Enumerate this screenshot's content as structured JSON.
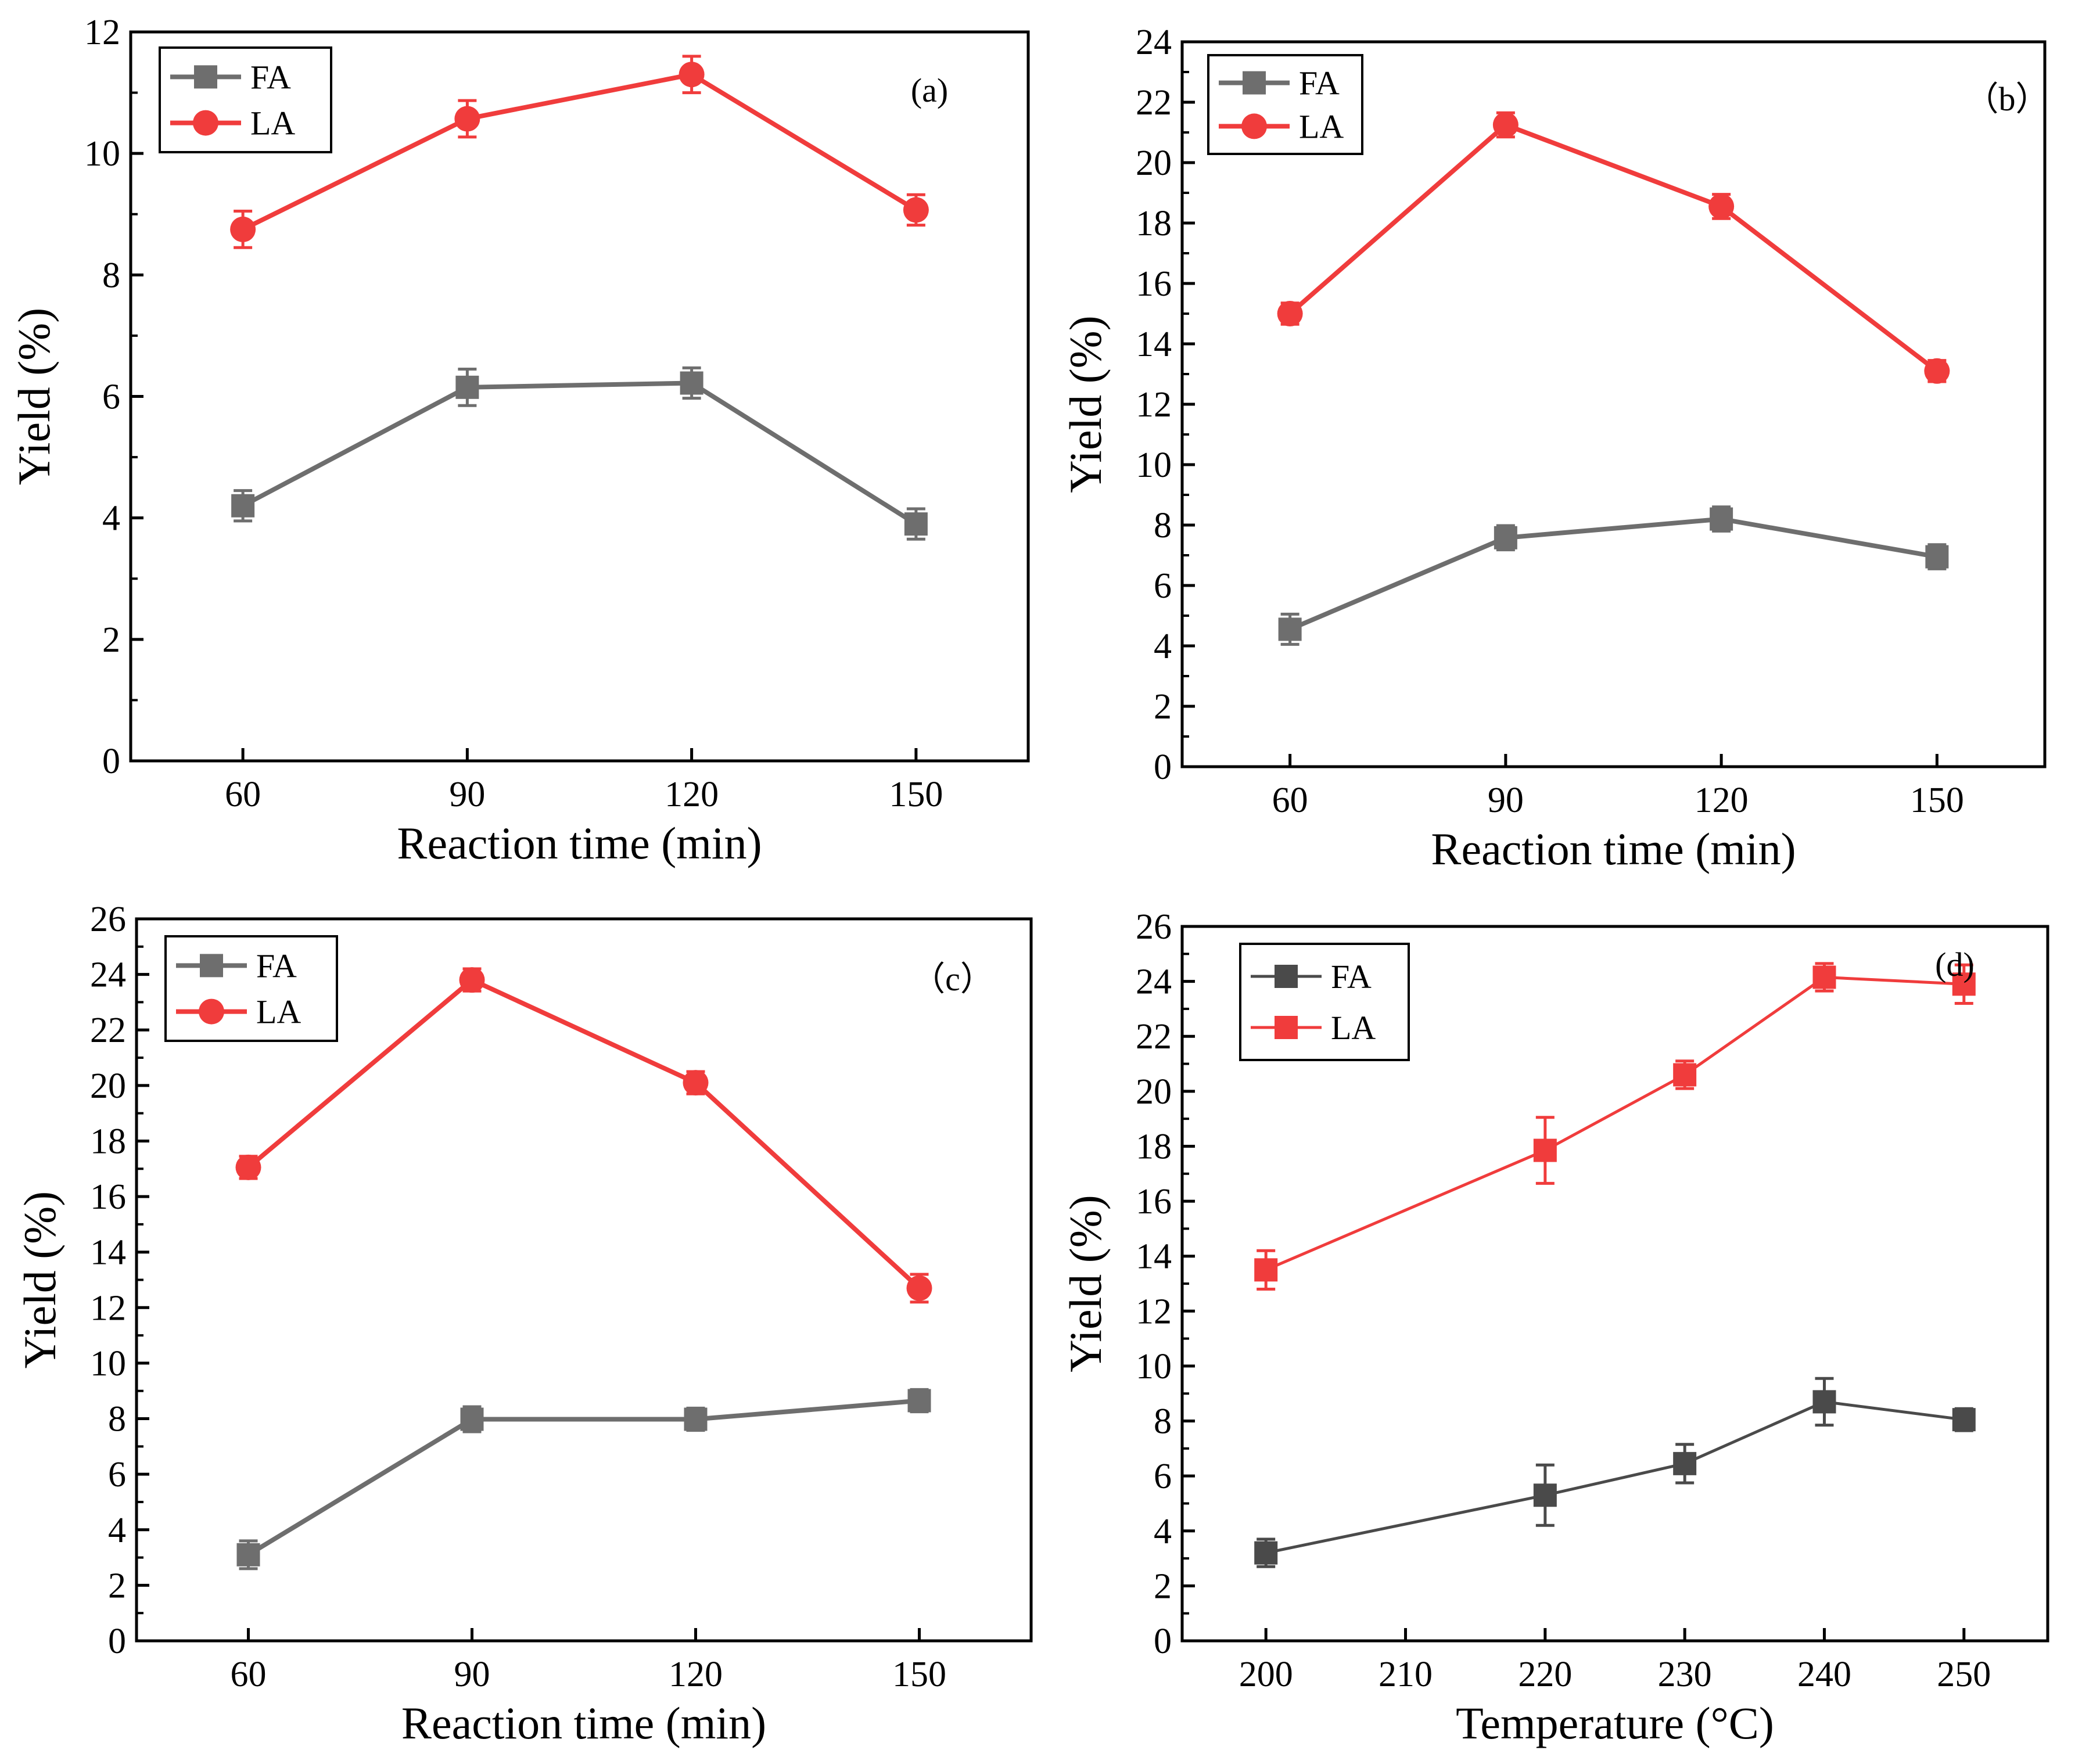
{
  "chart_data": [
    {
      "type": "line",
      "panel_label": "(a)",
      "xlabel": "Reaction time (min)",
      "ylabel": "Yield (%)",
      "x": [
        60,
        90,
        120,
        150
      ],
      "xticks": [
        "60",
        "90",
        "120",
        "150"
      ],
      "xlim": [
        45,
        165
      ],
      "ylim": [
        0,
        12
      ],
      "yticks": [
        "0",
        "2",
        "4",
        "6",
        "8",
        "10",
        "12"
      ],
      "series": [
        {
          "name": "FA",
          "color": "#6e6e6e",
          "marker": "square",
          "values": [
            4.2,
            6.15,
            6.22,
            3.9
          ],
          "errors": [
            0.25,
            0.3,
            0.25,
            0.25
          ]
        },
        {
          "name": "LA",
          "color": "#f03c3c",
          "marker": "circle",
          "values": [
            8.75,
            10.57,
            11.3,
            9.07
          ],
          "errors": [
            0.3,
            0.3,
            0.3,
            0.25
          ]
        }
      ]
    },
    {
      "type": "line",
      "panel_label": "（b）",
      "xlabel": "Reaction time (min)",
      "ylabel": "Yield (%)",
      "x": [
        60,
        90,
        120,
        150
      ],
      "xticks": [
        "60",
        "90",
        "120",
        "150"
      ],
      "xlim": [
        45,
        165
      ],
      "ylim": [
        0,
        24
      ],
      "yticks": [
        "0",
        "2",
        "4",
        "6",
        "8",
        "10",
        "12",
        "14",
        "16",
        "18",
        "20",
        "22",
        "24"
      ],
      "series": [
        {
          "name": "FA",
          "color": "#6e6e6e",
          "marker": "square",
          "values": [
            4.55,
            7.58,
            8.2,
            6.95
          ],
          "errors": [
            0.5,
            0.4,
            0.4,
            0.4
          ]
        },
        {
          "name": "LA",
          "color": "#f03c3c",
          "marker": "circle",
          "values": [
            15.0,
            21.25,
            18.55,
            13.1
          ],
          "errors": [
            0.35,
            0.4,
            0.4,
            0.35
          ]
        }
      ]
    },
    {
      "type": "line",
      "panel_label": "（c）",
      "xlabel": "Reaction time (min)",
      "ylabel": "Yield (%)",
      "x": [
        60,
        90,
        120,
        150
      ],
      "xticks": [
        "60",
        "90",
        "120",
        "150"
      ],
      "xlim": [
        45,
        165
      ],
      "ylim": [
        0,
        26
      ],
      "yticks": [
        "0",
        "2",
        "4",
        "6",
        "8",
        "10",
        "12",
        "14",
        "16",
        "18",
        "20",
        "22",
        "24",
        "26"
      ],
      "series": [
        {
          "name": "FA",
          "color": "#6e6e6e",
          "marker": "square",
          "values": [
            3.1,
            7.98,
            7.98,
            8.65
          ],
          "errors": [
            0.5,
            0.45,
            0.4,
            0.4
          ]
        },
        {
          "name": "LA",
          "color": "#f03c3c",
          "marker": "circle",
          "values": [
            17.05,
            23.8,
            20.1,
            12.7
          ],
          "errors": [
            0.4,
            0.4,
            0.4,
            0.5
          ]
        }
      ]
    },
    {
      "type": "line",
      "panel_label": "(d)",
      "xlabel": "Temperature (°C)",
      "ylabel": "Yield (%)",
      "x": [
        200,
        220,
        230,
        240,
        250
      ],
      "xticks": [
        "200",
        "210",
        "220",
        "230",
        "240",
        "250"
      ],
      "xtick_values": [
        200,
        210,
        220,
        230,
        240,
        250
      ],
      "xlim": [
        194,
        256
      ],
      "ylim": [
        0,
        26
      ],
      "yticks": [
        "0",
        "2",
        "4",
        "6",
        "8",
        "10",
        "12",
        "14",
        "16",
        "18",
        "20",
        "22",
        "24",
        "26"
      ],
      "series": [
        {
          "name": "FA",
          "color": "#4a4a4a",
          "marker": "square",
          "values": [
            3.2,
            5.3,
            6.45,
            8.7,
            8.05
          ],
          "errors": [
            0.5,
            1.1,
            0.7,
            0.85,
            0.4
          ]
        },
        {
          "name": "LA",
          "color": "#f03c3c",
          "marker": "square",
          "values": [
            13.5,
            17.85,
            20.6,
            24.15,
            23.9
          ],
          "errors": [
            0.7,
            1.2,
            0.5,
            0.5,
            0.7
          ]
        }
      ]
    }
  ]
}
